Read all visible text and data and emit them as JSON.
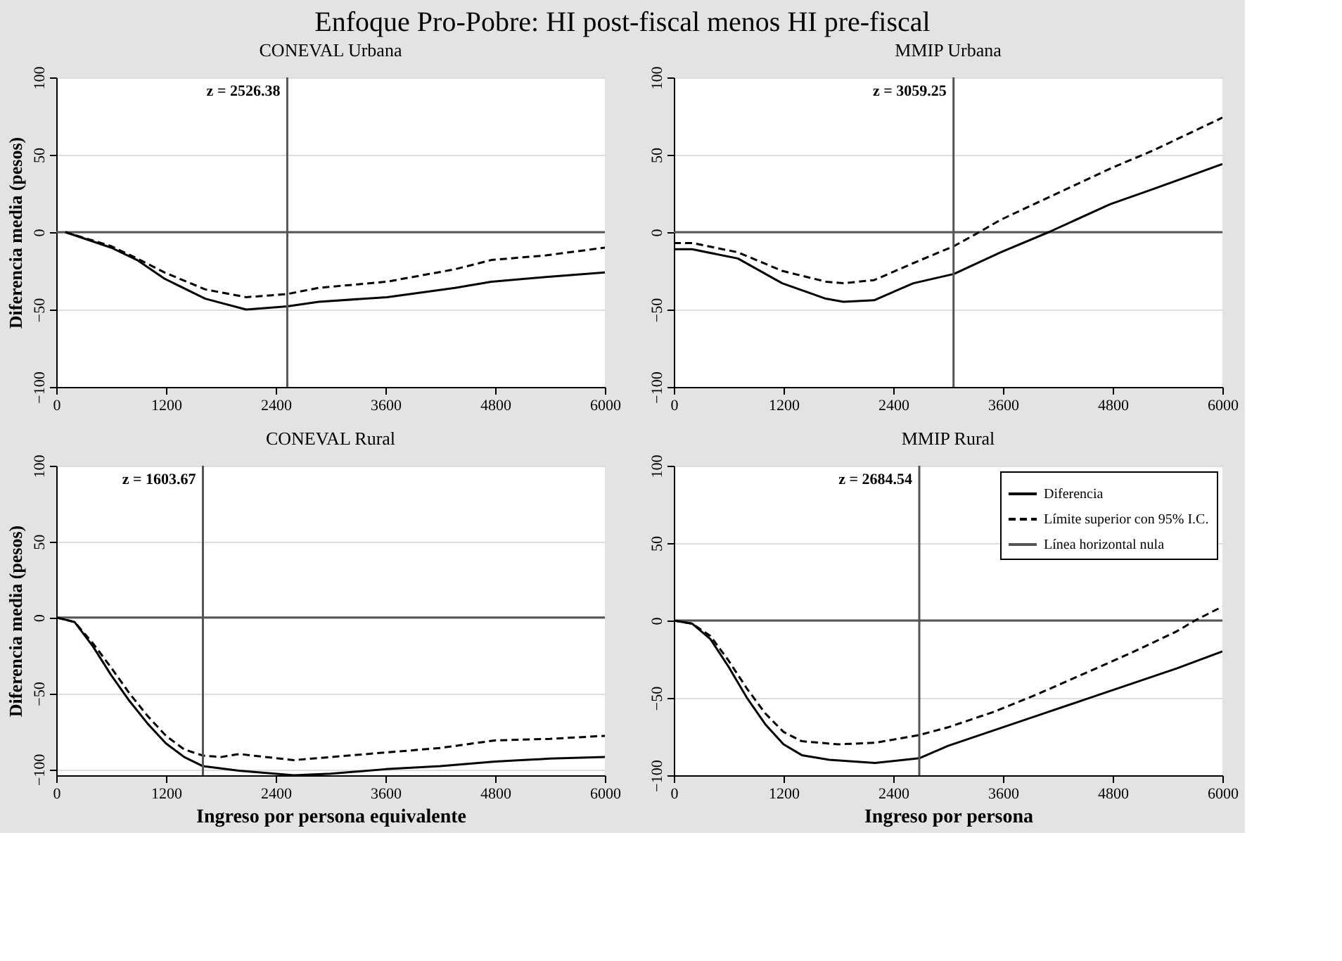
{
  "chart_data": [
    {
      "type": "line",
      "title": "CONEVAL Urbana",
      "ylabel": "Diferencia media (pesos)",
      "annotations": [
        "Enfoque Pro-Pobre: HI post-fiscal menos HI pre-fiscal"
      ],
      "xlim": [
        0,
        6000
      ],
      "xticks": [
        0,
        1200,
        2400,
        3600,
        4800,
        6000
      ],
      "ylim": [
        -100,
        100
      ],
      "yticks": [
        -100,
        -50,
        0,
        50,
        100
      ],
      "grid": "y",
      "legend": false,
      "series": [
        {
          "color": "#000000",
          "line_style": "solid",
          "x": [
            100,
            600,
            884,
            1182,
            1630,
            2077,
            2524,
            2870,
            3616,
            4360,
            4757,
            5354,
            6000
          ],
          "values": [
            0,
            -10,
            -18,
            -30,
            -43,
            -50,
            -48,
            -45,
            -42,
            -36,
            -32,
            -29,
            -26
          ]
        },
        {
          "color": "#000000",
          "line_style": "dashed",
          "x": [
            100,
            600,
            884,
            1182,
            1630,
            2077,
            2524,
            2870,
            3616,
            4360,
            4757,
            5354,
            6000
          ],
          "values": [
            0,
            -9,
            -17,
            -26,
            -37,
            -42,
            -40,
            -36,
            -32,
            -24,
            -18,
            -15,
            -10
          ]
        }
      ],
      "ref_lines": [
        {
          "axis": "y",
          "value": 0,
          "color": "#555555"
        },
        {
          "axis": "x",
          "value": 2526.38,
          "label": "z = 2526.38",
          "color": "#555555"
        }
      ]
    },
    {
      "type": "line",
      "title": "MMIP Urbana",
      "xlim": [
        0,
        6000
      ],
      "xticks": [
        0,
        1200,
        2400,
        3600,
        4800,
        6000
      ],
      "ylim": [
        -100,
        100
      ],
      "yticks": [
        -100,
        -50,
        0,
        50,
        100
      ],
      "grid": "y",
      "legend": false,
      "series": [
        {
          "color": "#000000",
          "line_style": "solid",
          "x": [
            0,
            200,
            700,
            1185,
            1663,
            1855,
            2190,
            2620,
            3064,
            3575,
            4100,
            4770,
            5250,
            6000
          ],
          "values": [
            -11,
            -11,
            -17,
            -33,
            -43,
            -45,
            -44,
            -33,
            -27,
            -13,
            0,
            18,
            28,
            44
          ]
        },
        {
          "color": "#000000",
          "line_style": "dashed",
          "x": [
            0,
            200,
            700,
            1185,
            1663,
            1855,
            2190,
            2620,
            3064,
            3340,
            3575,
            4770,
            5250,
            6000
          ],
          "values": [
            -7,
            -7,
            -13,
            -25,
            -32,
            -33,
            -31,
            -20,
            -9,
            0,
            8,
            41,
            53,
            74
          ]
        }
      ],
      "ref_lines": [
        {
          "axis": "y",
          "value": 0,
          "color": "#555555"
        },
        {
          "axis": "x",
          "value": 3059.25,
          "label": "z = 3059.25",
          "color": "#555555"
        }
      ]
    },
    {
      "type": "line",
      "title": "CONEVAL Rural",
      "xlabel": "Ingreso por persona equivalente",
      "ylabel": "Diferencia media (pesos)",
      "xlim": [
        0,
        6000
      ],
      "xticks": [
        0,
        1200,
        2400,
        3600,
        4800,
        6000
      ],
      "ylim": [
        -104,
        100
      ],
      "yticks": [
        -100,
        -50,
        0,
        50,
        100
      ],
      "grid": "y",
      "legend": false,
      "series": [
        {
          "color": "#000000",
          "line_style": "solid",
          "x": [
            0,
            200,
            400,
            600,
            800,
            1000,
            1200,
            1400,
            1604,
            2000,
            2600,
            3000,
            3600,
            4200,
            4800,
            5400,
            6000
          ],
          "values": [
            0,
            -3,
            -19,
            -38,
            -55,
            -70,
            -83,
            -92,
            -98,
            -101,
            -104,
            -103,
            -100,
            -98,
            -95,
            -93,
            -92
          ]
        },
        {
          "color": "#000000",
          "line_style": "dashed",
          "x": [
            0,
            200,
            400,
            600,
            800,
            1000,
            1200,
            1400,
            1604,
            1800,
            2000,
            2600,
            3000,
            3600,
            4200,
            4800,
            5400,
            6000
          ],
          "values": [
            0,
            -3,
            -17,
            -33,
            -50,
            -65,
            -78,
            -87,
            -91,
            -92,
            -90,
            -94,
            -92,
            -89,
            -86,
            -81,
            -80,
            -78
          ]
        }
      ],
      "ref_lines": [
        {
          "axis": "y",
          "value": 0,
          "color": "#555555"
        },
        {
          "axis": "x",
          "value": 1603.67,
          "label": "z = 1603.67",
          "color": "#555555"
        }
      ]
    },
    {
      "type": "line",
      "title": "MMIP Rural",
      "xlabel": "Ingreso por persona",
      "xlim": [
        0,
        6000
      ],
      "xticks": [
        0,
        1200,
        2400,
        3600,
        4800,
        6000
      ],
      "ylim": [
        -100,
        100
      ],
      "yticks": [
        -100,
        -50,
        0,
        50,
        100
      ],
      "grid": "y",
      "legend": "top right",
      "series": [
        {
          "name": "Diferencia",
          "color": "#000000",
          "line_style": "solid",
          "x": [
            0,
            200,
            400,
            600,
            800,
            1000,
            1200,
            1400,
            1700,
            2200,
            2684,
            3000,
            3500,
            4000,
            4500,
            5000,
            5500,
            6000
          ],
          "values": [
            0,
            -2,
            -12,
            -30,
            -50,
            -67,
            -80,
            -87,
            -90,
            -92,
            -89,
            -81,
            -71,
            -61,
            -51,
            -41,
            -31,
            -20
          ]
        },
        {
          "name": "Límite superior con 95% I.C.",
          "color": "#000000",
          "line_style": "dashed",
          "x": [
            0,
            200,
            400,
            600,
            800,
            1000,
            1200,
            1400,
            1800,
            2200,
            2684,
            3000,
            3500,
            4000,
            4500,
            5000,
            5500,
            5700,
            6000
          ],
          "values": [
            0,
            -2,
            -10,
            -26,
            -44,
            -60,
            -72,
            -78,
            -80,
            -79,
            -74,
            -69,
            -59,
            -47,
            -34,
            -21,
            -7,
            0,
            9
          ]
        }
      ],
      "ref_lines": [
        {
          "axis": "y",
          "value": 0,
          "label": "Línea horizontal nula",
          "color": "#555555"
        },
        {
          "axis": "x",
          "value": 2684.54,
          "label": "z = 2684.54",
          "color": "#555555"
        }
      ]
    }
  ]
}
